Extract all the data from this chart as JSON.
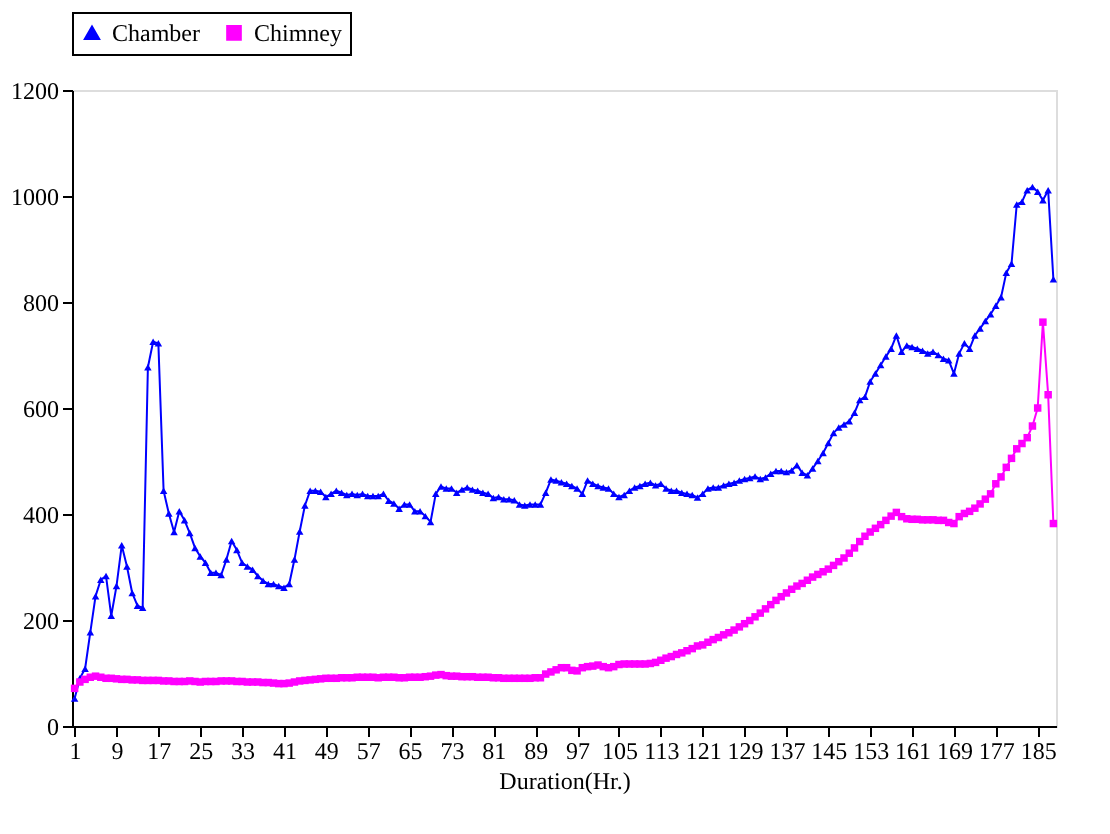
{
  "chart_data": {
    "type": "line",
    "xlabel": "Duration(Hr.)",
    "xlim": [
      0.5,
      188.5
    ],
    "xticks": [
      1,
      9,
      17,
      25,
      33,
      41,
      49,
      57,
      65,
      73,
      81,
      89,
      97,
      105,
      113,
      121,
      129,
      137,
      145,
      153,
      161,
      169,
      177,
      185
    ],
    "ylim": [
      0,
      1200
    ],
    "yticks": [
      0,
      200,
      400,
      600,
      800,
      1000,
      1200
    ],
    "grid": false,
    "legend": "top",
    "line_style": "solid",
    "x": [
      1,
      2,
      3,
      4,
      5,
      6,
      7,
      8,
      9,
      10,
      11,
      12,
      13,
      14,
      15,
      16,
      17,
      18,
      19,
      20,
      21,
      22,
      23,
      24,
      25,
      26,
      27,
      28,
      29,
      30,
      31,
      32,
      33,
      34,
      35,
      36,
      37,
      38,
      39,
      40,
      41,
      42,
      43,
      44,
      45,
      46,
      47,
      48,
      49,
      50,
      51,
      52,
      53,
      54,
      55,
      56,
      57,
      58,
      59,
      60,
      61,
      62,
      63,
      64,
      65,
      66,
      67,
      68,
      69,
      70,
      71,
      72,
      73,
      74,
      75,
      76,
      77,
      78,
      79,
      80,
      81,
      82,
      83,
      84,
      85,
      86,
      87,
      88,
      89,
      90,
      91,
      92,
      93,
      94,
      95,
      96,
      97,
      98,
      99,
      100,
      101,
      102,
      103,
      104,
      105,
      106,
      107,
      108,
      109,
      110,
      111,
      112,
      113,
      114,
      115,
      116,
      117,
      118,
      119,
      120,
      121,
      122,
      123,
      124,
      125,
      126,
      127,
      128,
      129,
      130,
      131,
      132,
      133,
      134,
      135,
      136,
      137,
      138,
      139,
      140,
      141,
      142,
      143,
      144,
      145,
      146,
      147,
      148,
      149,
      150,
      151,
      152,
      153,
      154,
      155,
      156,
      157,
      158,
      159,
      160,
      161,
      162,
      163,
      164,
      165,
      166,
      167,
      168,
      169,
      170,
      171,
      172,
      173,
      174,
      175,
      176,
      177,
      178,
      179,
      180,
      181,
      182,
      183,
      184,
      185,
      186,
      187,
      188
    ],
    "series": [
      {
        "name": "Chamber",
        "color": "#0000ff",
        "marker": "triangle",
        "values": [
          52,
          90,
          108,
          177,
          245,
          276,
          283,
          208,
          264,
          341,
          301,
          251,
          227,
          223,
          677,
          725,
          722,
          444,
          401,
          366,
          405,
          388,
          364,
          336,
          320,
          308,
          289,
          289,
          285,
          314,
          349,
          332,
          308,
          301,
          295,
          283,
          274,
          268,
          268,
          264,
          261,
          268,
          314,
          367,
          416,
          444,
          444,
          442,
          432,
          438,
          444,
          440,
          436,
          438,
          436,
          438,
          434,
          434,
          434,
          438,
          425,
          420,
          410,
          418,
          418,
          405,
          405,
          396,
          385,
          438,
          452,
          448,
          448,
          440,
          446,
          450,
          446,
          444,
          440,
          438,
          430,
          432,
          428,
          428,
          426,
          418,
          416,
          418,
          418,
          418,
          440,
          465,
          463,
          460,
          457,
          453,
          448,
          438,
          463,
          457,
          453,
          450,
          448,
          438,
          432,
          436,
          444,
          450,
          453,
          457,
          459,
          454,
          457,
          448,
          444,
          444,
          440,
          438,
          436,
          431,
          438,
          448,
          450,
          450,
          454,
          457,
          459,
          463,
          466,
          468,
          471,
          466,
          469,
          476,
          481,
          481,
          479,
          482,
          492,
          478,
          473,
          486,
          500,
          515,
          534,
          553,
          563,
          569,
          575,
          591,
          615,
          621,
          650,
          665,
          681,
          697,
          712,
          737,
          706,
          718,
          715,
          712,
          708,
          703,
          706,
          700,
          693,
          690,
          665,
          703,
          722,
          712,
          737,
          750,
          764,
          777,
          793,
          809,
          855,
          872,
          984,
          989,
          1011,
          1017,
          1008,
          992,
          1011,
          843
        ]
      },
      {
        "name": "Chimney",
        "color": "#ff00ff",
        "marker": "square",
        "values": [
          71,
          83,
          88,
          92,
          94,
          92,
          90,
          90,
          89,
          88,
          88,
          87,
          87,
          86,
          86,
          86,
          86,
          85,
          85,
          84,
          84,
          84,
          85,
          84,
          83,
          84,
          84,
          84,
          85,
          85,
          85,
          84,
          84,
          83,
          83,
          83,
          82,
          82,
          81,
          80,
          80,
          81,
          83,
          85,
          86,
          87,
          88,
          89,
          90,
          90,
          90,
          91,
          91,
          91,
          92,
          92,
          92,
          92,
          91,
          92,
          92,
          92,
          91,
          91,
          92,
          92,
          92,
          93,
          94,
          96,
          97,
          95,
          94,
          94,
          93,
          93,
          93,
          92,
          92,
          92,
          91,
          91,
          90,
          90,
          90,
          90,
          90,
          90,
          91,
          91,
          98,
          102,
          106,
          110,
          110,
          105,
          104,
          110,
          112,
          113,
          115,
          112,
          110,
          112,
          116,
          117,
          117,
          117,
          117,
          117,
          118,
          120,
          124,
          128,
          131,
          135,
          138,
          142,
          146,
          151,
          153,
          158,
          163,
          167,
          172,
          176,
          181,
          187,
          193,
          199,
          206,
          213,
          221,
          229,
          237,
          244,
          251,
          258,
          264,
          269,
          275,
          281,
          286,
          291,
          296,
          303,
          310,
          317,
          326,
          336,
          348,
          358,
          366,
          373,
          380,
          388,
          396,
          403,
          395,
          391,
          390,
          390,
          389,
          389,
          389,
          388,
          388,
          384,
          382,
          395,
          401,
          405,
          411,
          419,
          428,
          438,
          457,
          470,
          488,
          505,
          523,
          533,
          544,
          566,
          600,
          762,
          625,
          382
        ]
      }
    ]
  }
}
